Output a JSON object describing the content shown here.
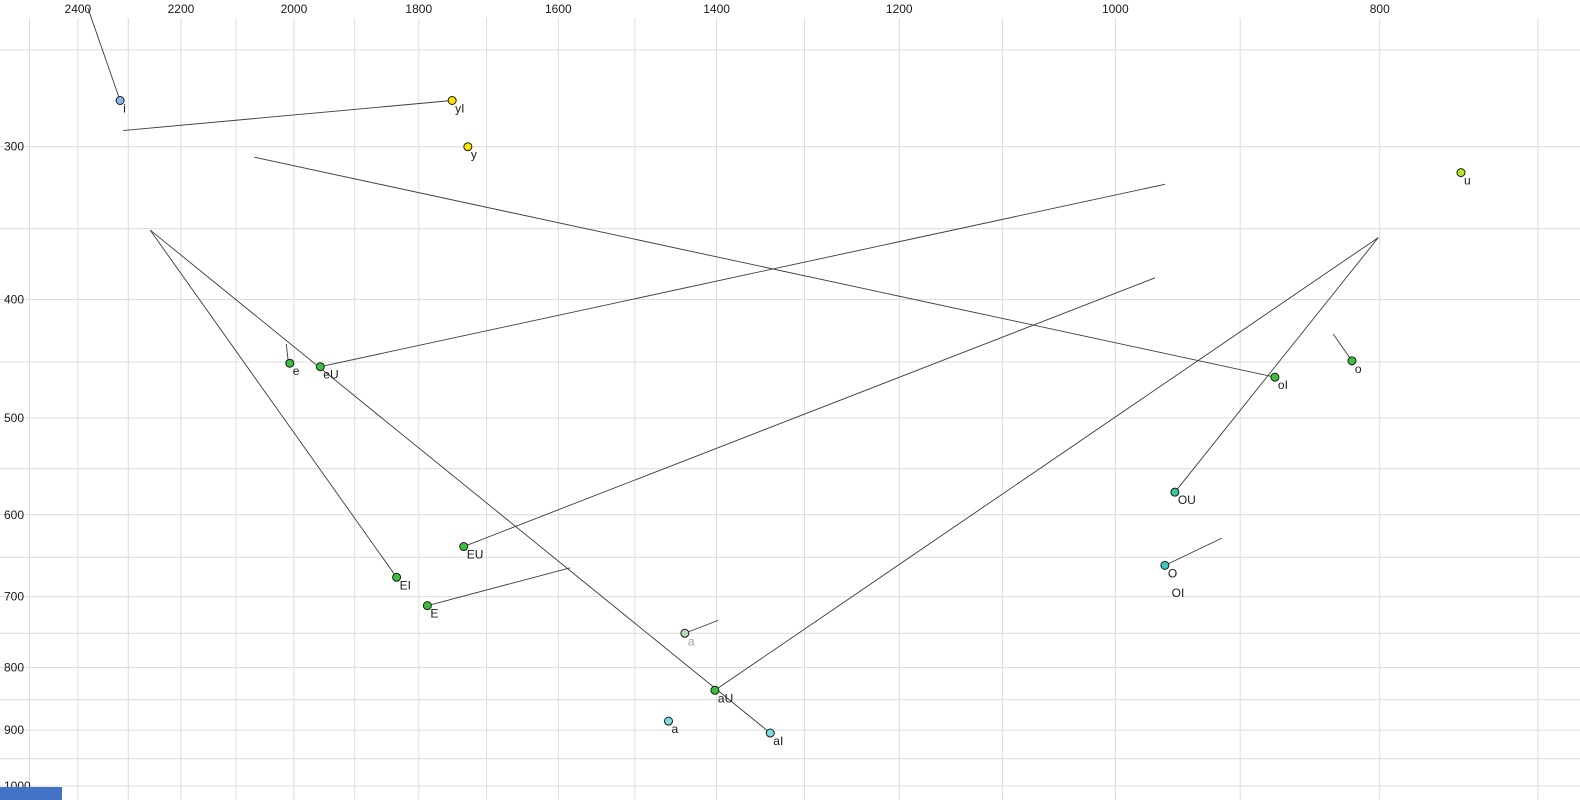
{
  "chart_data": {
    "type": "scatter",
    "x_axis": {
      "position": "top",
      "scale": "log",
      "reversed": true,
      "ticks": [
        "2400",
        "2200",
        "2000",
        "1800",
        "1600",
        "1400",
        "1200",
        "1000",
        "800"
      ],
      "tick_values": [
        2400,
        2200,
        2000,
        1800,
        1600,
        1400,
        1200,
        1000,
        800
      ],
      "grid": {
        "min": 700,
        "max": 2500,
        "step": 100
      },
      "range": [
        2565,
        676
      ]
    },
    "y_axis": {
      "position": "left",
      "scale": "log",
      "ticks": [
        "300",
        "400",
        "500",
        "600",
        "700",
        "800",
        "900",
        "1000"
      ],
      "tick_values": [
        300,
        400,
        500,
        600,
        700,
        800,
        900,
        1000
      ],
      "grid": {
        "min": 250,
        "max": 1000,
        "step": 50
      },
      "range": [
        227,
        1023
      ]
    },
    "points": [
      {
        "label": "i",
        "f2": 2316,
        "f1": 275,
        "fill": "#8fb2f0"
      },
      {
        "label": "yI",
        "f2": 1750,
        "f1": 275,
        "fill": "#ffe400"
      },
      {
        "label": "y",
        "f2": 1727,
        "f1": 300,
        "fill": "#ffe400"
      },
      {
        "label": "u",
        "f2": 747,
        "f1": 315,
        "fill": "#b5e61d"
      },
      {
        "label": "e",
        "f2": 2007,
        "f1": 451,
        "fill": "#3dbf3d"
      },
      {
        "label": "eU",
        "f2": 1956,
        "f1": 454,
        "fill": "#3dbf3d"
      },
      {
        "label": "o",
        "f2": 819,
        "f1": 449,
        "fill": "#3dbf3d"
      },
      {
        "label": "oI",
        "f2": 874,
        "f1": 463,
        "fill": "#3dbf3d"
      },
      {
        "label": "OU",
        "f2": 951,
        "f1": 575,
        "fill": "#3cc48f"
      },
      {
        "label": "EU",
        "f2": 1733,
        "f1": 637,
        "fill": "#3dbf3d"
      },
      {
        "label": "EI",
        "f2": 1834,
        "f1": 675,
        "fill": "#3dbf3d"
      },
      {
        "label": "O",
        "f2": 959,
        "f1": 660,
        "fill": "#3fc7c7"
      },
      {
        "label": "OI",
        "f2": 956,
        "f1": 685,
        "dot": false
      },
      {
        "label": "E",
        "f2": 1787,
        "f1": 712,
        "fill": "#3dbf3d"
      },
      {
        "label": "a",
        "f2": 1438,
        "f1": 750,
        "fill": "#bcd4bc",
        "label_color": "#9aa79a"
      },
      {
        "label": "aU",
        "f2": 1402,
        "f1": 835,
        "fill": "#3dbf3d"
      },
      {
        "label": "a",
        "f2": 1458,
        "f1": 885,
        "fill": "#7fdbe0"
      },
      {
        "label": "aI",
        "f2": 1338,
        "f1": 905,
        "fill": "#7fdbe0"
      }
    ],
    "lines": [
      {
        "from": [
          2380,
          231
        ],
        "to": [
          2316,
          275
        ]
      },
      {
        "from": [
          2310,
          291
        ],
        "to": [
          1750,
          275
        ]
      },
      {
        "from": [
          2013,
          435
        ],
        "to": [
          2010,
          448
        ]
      },
      {
        "from": [
          2258,
          351
        ],
        "to": [
          1834,
          675
        ]
      },
      {
        "from": [
          2258,
          351
        ],
        "to": [
          1338,
          905
        ]
      },
      {
        "from": [
          801,
          356
        ],
        "to": [
          1402,
          835
        ]
      },
      {
        "from": [
          801,
          356
        ],
        "to": [
          951,
          575
        ]
      },
      {
        "from": [
          2068,
          306
        ],
        "to": [
          874,
          463
        ]
      },
      {
        "from": [
          1956,
          454
        ],
        "to": [
          959,
          322
        ]
      },
      {
        "from": [
          1733,
          637
        ],
        "to": [
          967,
          384
        ]
      },
      {
        "from": [
          1787,
          712
        ],
        "to": [
          1584,
          663
        ]
      },
      {
        "from": [
          1438,
          750
        ],
        "to": [
          1398,
          732
        ]
      },
      {
        "from": [
          959,
          660
        ],
        "to": [
          914,
          627
        ]
      },
      {
        "from": [
          819,
          449
        ],
        "to": [
          832,
          427
        ]
      }
    ]
  },
  "colors": {
    "background": "#ffffff",
    "grid": "#dcdcdc",
    "trajectory_line": "#3c3c3c",
    "point_outline": "#1b1b1b",
    "tick_text": "#1a1a1a",
    "point_label_text": "#1a1a1a",
    "bottom_left_marker": "#4472c4"
  }
}
